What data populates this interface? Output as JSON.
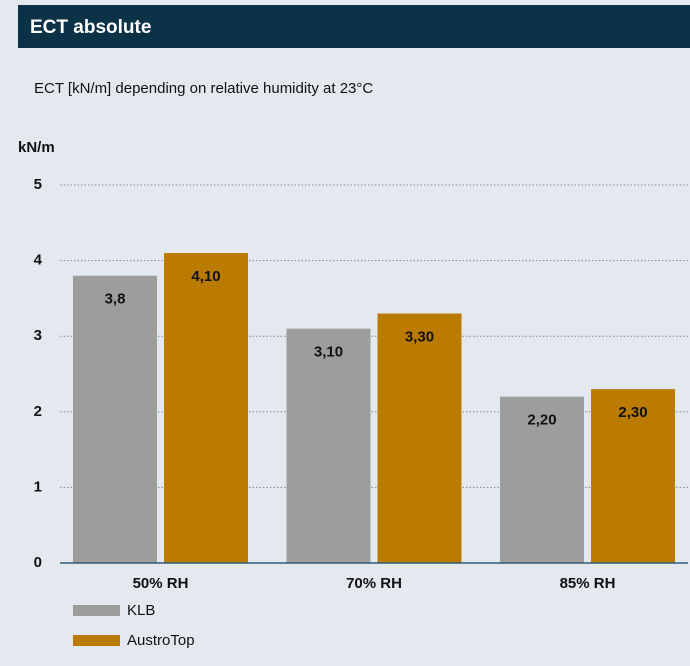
{
  "chart_data": {
    "type": "bar",
    "title": "ECT absolute",
    "subtitle": "ECT [kN/m] depending on relative humidity at 23°C",
    "y_label": "kN/m",
    "categories": [
      "50% RH",
      "70% RH",
      "85% RH"
    ],
    "series": [
      {
        "name": "KLB",
        "color": "#9d9d9b",
        "values": [
          3.8,
          3.1,
          2.2
        ],
        "value_labels": [
          "3,8",
          "3,10",
          "2,20"
        ]
      },
      {
        "name": "AustroTop",
        "color": "#bb7a00",
        "values": [
          4.1,
          3.3,
          2.3
        ],
        "value_labels": [
          "4,10",
          "3,30",
          "2,30"
        ]
      }
    ],
    "ylim": [
      0,
      5
    ],
    "yticks": [
      0,
      1,
      2,
      3,
      4,
      5
    ],
    "grid": true
  }
}
